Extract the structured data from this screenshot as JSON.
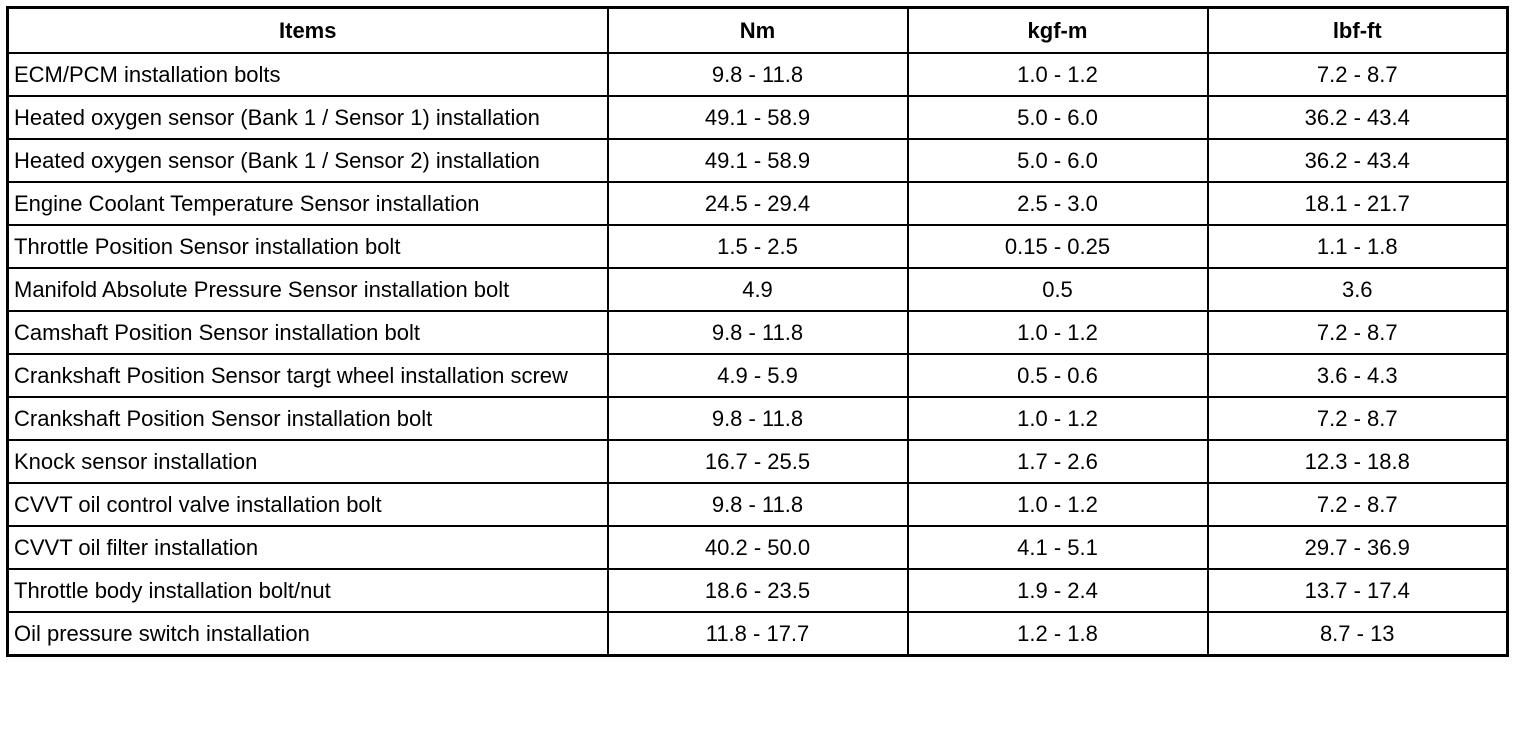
{
  "table": {
    "header": [
      "Items",
      "Nm",
      "kgf-m",
      "lbf-ft"
    ],
    "rows": [
      [
        "ECM/PCM installation bolts",
        "9.8 - 11.8",
        "1.0 - 1.2",
        "7.2 - 8.7"
      ],
      [
        "Heated oxygen sensor (Bank 1 / Sensor 1) installation",
        "49.1 - 58.9",
        "5.0 - 6.0",
        "36.2 - 43.4"
      ],
      [
        "Heated oxygen sensor (Bank 1 / Sensor 2) installation",
        "49.1 - 58.9",
        "5.0 - 6.0",
        "36.2 - 43.4"
      ],
      [
        "Engine Coolant Temperature Sensor installation",
        "24.5 - 29.4",
        "2.5 - 3.0",
        "18.1 - 21.7"
      ],
      [
        "Throttle Position Sensor installation bolt",
        "1.5 - 2.5",
        "0.15 - 0.25",
        "1.1 - 1.8"
      ],
      [
        "Manifold Absolute Pressure Sensor installation bolt",
        "4.9",
        "0.5",
        "3.6"
      ],
      [
        "Camshaft Position Sensor installation bolt",
        "9.8 - 11.8",
        "1.0 - 1.2",
        "7.2 - 8.7"
      ],
      [
        "Crankshaft Position Sensor targt wheel installation screw",
        "4.9 - 5.9",
        "0.5 - 0.6",
        "3.6 - 4.3"
      ],
      [
        "Crankshaft Position Sensor installation bolt",
        "9.8 - 11.8",
        "1.0 - 1.2",
        "7.2 - 8.7"
      ],
      [
        "Knock sensor installation",
        "16.7 - 25.5",
        "1.7 - 2.6",
        "12.3 - 18.8"
      ],
      [
        "CVVT oil control valve installation bolt",
        "9.8 - 11.8",
        "1.0 - 1.2",
        "7.2 - 8.7"
      ],
      [
        "CVVT oil filter installation",
        "40.2 - 50.0",
        "4.1 - 5.1",
        "29.7 - 36.9"
      ],
      [
        "Throttle body installation bolt/nut",
        "18.6 - 23.5",
        "1.9 - 2.4",
        "13.7 - 17.4"
      ],
      [
        "Oil pressure switch installation",
        "11.8 - 17.7",
        "1.2 - 1.8",
        "8.7 - 13"
      ]
    ]
  }
}
